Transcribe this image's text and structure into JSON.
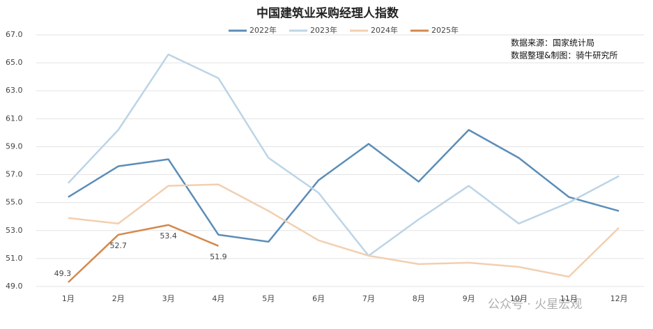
{
  "chart_data": {
    "type": "line",
    "title": "中国建筑业采购经理人指数",
    "categories": [
      "1月",
      "2月",
      "3月",
      "4月",
      "5月",
      "6月",
      "7月",
      "8月",
      "9月",
      "10月",
      "11月",
      "12月"
    ],
    "series": [
      {
        "name": "2022年",
        "color": "#5b8db8",
        "values": [
          55.4,
          57.6,
          58.1,
          52.7,
          52.2,
          56.6,
          59.2,
          56.5,
          60.2,
          58.2,
          55.4,
          54.4
        ]
      },
      {
        "name": "2023年",
        "color": "#bcd4e6",
        "values": [
          56.4,
          60.2,
          65.6,
          63.9,
          58.2,
          55.7,
          51.2,
          53.8,
          56.2,
          53.5,
          55.0,
          56.9
        ]
      },
      {
        "name": "2024年",
        "color": "#f2cfb0",
        "values": [
          53.9,
          53.5,
          56.2,
          56.3,
          54.4,
          52.3,
          51.2,
          50.6,
          50.7,
          50.4,
          49.7,
          53.2
        ]
      },
      {
        "name": "2025年",
        "color": "#d4884a",
        "values": [
          49.3,
          52.7,
          53.4,
          51.9,
          null,
          null,
          null,
          null,
          null,
          null,
          null,
          null
        ],
        "show_labels": true
      }
    ],
    "ylim": [
      49,
      67
    ],
    "yticks": [
      {
        "value": 49,
        "label": "49.0"
      },
      {
        "value": 51,
        "label": "51.0"
      },
      {
        "value": 53,
        "label": "53.0"
      },
      {
        "value": 55,
        "label": "55.0"
      },
      {
        "value": 57,
        "label": "57.0"
      },
      {
        "value": 59,
        "label": "59.0"
      },
      {
        "value": 61,
        "label": "61.0"
      },
      {
        "value": 63,
        "label": "63.0"
      },
      {
        "value": 65,
        "label": "65.0"
      },
      {
        "value": 67,
        "label": "67.0"
      }
    ],
    "grid": true,
    "legend": "top",
    "annotations": [
      "数据来源：国家统计局",
      "数据整理&制图：骑牛研究所"
    ],
    "watermark": "公众号 · 火星宏观"
  }
}
